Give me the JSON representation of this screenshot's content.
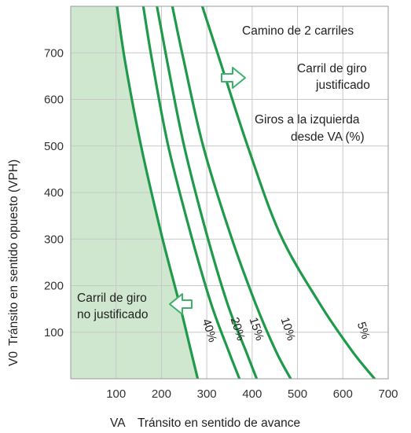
{
  "chart_data": {
    "type": "line",
    "title": "Camino de 2 carriles",
    "xlabel_prefix": "VA",
    "xlabel": "Tránsito en sentido de avance",
    "ylabel_prefix": "V0",
    "ylabel": "Tránsito en sentido opuesto (VPH)",
    "xlim": [
      0,
      700
    ],
    "ylim": [
      0,
      800
    ],
    "x_ticks": [
      "100",
      "200",
      "300",
      "400",
      "500",
      "600",
      "700"
    ],
    "y_ticks": [
      "100",
      "200",
      "300",
      "400",
      "500",
      "600",
      "700"
    ],
    "grid": true,
    "colors": {
      "curve": "#1e9a4a",
      "region": "#cfe6cf",
      "grid": "#c8c8c8",
      "arrow": "#3db06a"
    },
    "series": [
      {
        "name": "40%",
        "points": [
          [
            102,
            800
          ],
          [
            120,
            680
          ],
          [
            155,
            500
          ],
          [
            200,
            310
          ],
          [
            240,
            160
          ],
          [
            265,
            60
          ],
          [
            280,
            0
          ]
        ]
      },
      {
        "name": "20%",
        "points": [
          [
            160,
            800
          ],
          [
            180,
            680
          ],
          [
            215,
            500
          ],
          [
            265,
            310
          ],
          [
            310,
            160
          ],
          [
            348,
            60
          ],
          [
            372,
            0
          ]
        ]
      },
      {
        "name": "15%",
        "points": [
          [
            190,
            800
          ],
          [
            213,
            680
          ],
          [
            250,
            500
          ],
          [
            300,
            310
          ],
          [
            346,
            160
          ],
          [
            386,
            60
          ],
          [
            410,
            0
          ]
        ]
      },
      {
        "name": "10%",
        "points": [
          [
            224,
            800
          ],
          [
            250,
            680
          ],
          [
            292,
            500
          ],
          [
            352,
            310
          ],
          [
            408,
            160
          ],
          [
            452,
            60
          ],
          [
            485,
            0
          ]
        ]
      },
      {
        "name": "5%",
        "points": [
          [
            290,
            800
          ],
          [
            330,
            680
          ],
          [
            390,
            500
          ],
          [
            462,
            310
          ],
          [
            550,
            160
          ],
          [
            620,
            60
          ],
          [
            670,
            0
          ]
        ]
      }
    ],
    "annotations": {
      "warranted": [
        "Carril de giro",
        "justificado"
      ],
      "left_turns": [
        "Giros a la izquierda",
        "desde VA (%)"
      ],
      "not_warranted": [
        "Carril de giro",
        "no justificado"
      ]
    }
  }
}
